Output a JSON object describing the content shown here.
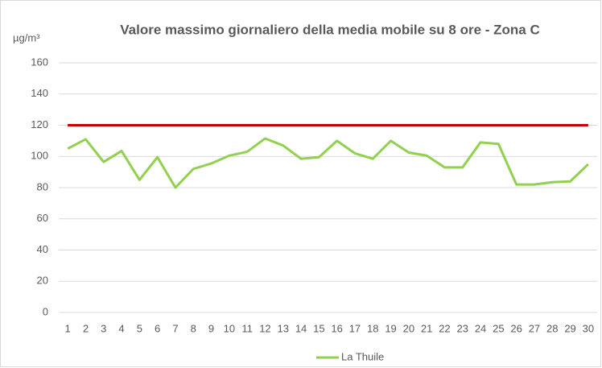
{
  "chart_data": {
    "type": "line",
    "title": "Valore massimo giornaliero della media mobile su 8 ore - Zona C",
    "y_label": "µg/m³",
    "x": [
      1,
      2,
      3,
      4,
      5,
      6,
      7,
      8,
      9,
      10,
      11,
      12,
      13,
      14,
      15,
      16,
      17,
      18,
      19,
      20,
      21,
      22,
      23,
      24,
      25,
      26,
      27,
      28,
      29,
      30
    ],
    "series": [
      {
        "name": "La Thuile",
        "color": "#92d050",
        "values": [
          105,
          111,
          96.5,
          103.5,
          85,
          99.5,
          80,
          92,
          95.5,
          100.5,
          103,
          111.5,
          107,
          98.5,
          99.5,
          110,
          102,
          98.5,
          110,
          102.5,
          100.5,
          93,
          93,
          109,
          108,
          82,
          82,
          83.5,
          84,
          95
        ]
      }
    ],
    "reference_line": {
      "value": 120,
      "color": "#c00000"
    },
    "ylim": [
      0,
      160
    ],
    "yticks": [
      0,
      20,
      40,
      60,
      80,
      100,
      120,
      140,
      160
    ],
    "grid": true,
    "legend": "bottom"
  }
}
